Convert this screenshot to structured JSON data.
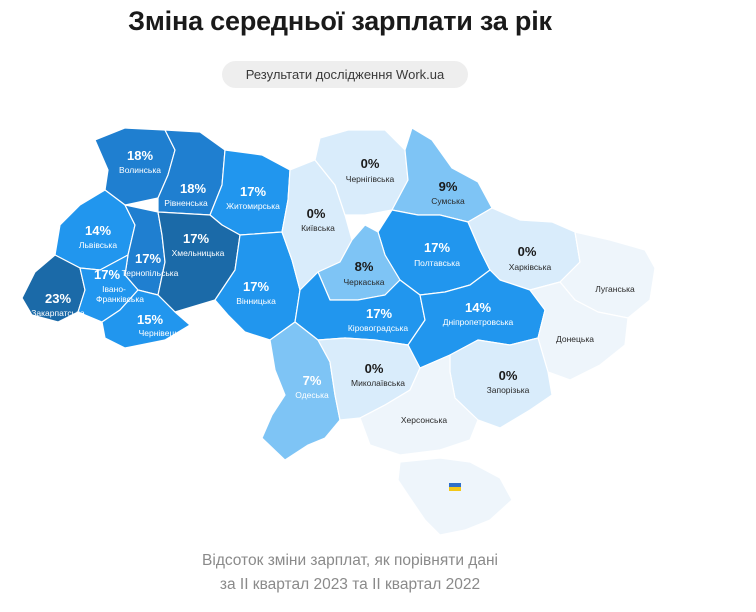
{
  "header": {
    "title": "Зміна середньої зарплати за рік",
    "source_badge": "Результати дослідження Work.ua"
  },
  "footnote": {
    "line1": "Відсоток зміни зарплат, як порівняти дані",
    "line2": "за II квартал 2023 та II квартал 2022"
  },
  "colors": {
    "darkest": "#1b6aa8",
    "dark": "#1f7fd0",
    "mid": "#2196ee",
    "light": "#7ec4f5",
    "pale": "#d9ecfb",
    "palest": "#eef5fb"
  },
  "map": {
    "regions": [
      {
        "id": "volynska",
        "name": "Волинська",
        "value": "18%"
      },
      {
        "id": "rivnenska",
        "name": "Рівненська",
        "value": "18%"
      },
      {
        "id": "zhytomyrska",
        "name": "Житомирська",
        "value": "17%"
      },
      {
        "id": "lvivska",
        "name": "Львівська",
        "value": "14%"
      },
      {
        "id": "ternopilska",
        "name": "Тернопільська",
        "value": "17%"
      },
      {
        "id": "khmelnytska",
        "name": "Хмельницька",
        "value": "17%"
      },
      {
        "id": "vinnytska",
        "name": "Вінницька",
        "value": "17%"
      },
      {
        "id": "zakarpatska",
        "name": "Закарпатська",
        "value": "23%"
      },
      {
        "id": "ivano_frankivska",
        "name": "Івано-Франківська",
        "value": "17%"
      },
      {
        "id": "chernivetska",
        "name": "Чернівецька",
        "value": "15%"
      },
      {
        "id": "kyivska",
        "name": "Київська",
        "value": "0%"
      },
      {
        "id": "chernihivska",
        "name": "Чернігівська",
        "value": "0%"
      },
      {
        "id": "sumska",
        "name": "Сумська",
        "value": "9%"
      },
      {
        "id": "poltavska",
        "name": "Полтавська",
        "value": "17%"
      },
      {
        "id": "kharkivska",
        "name": "Харківська",
        "value": "0%"
      },
      {
        "id": "cherkaska",
        "name": "Черкаська",
        "value": "8%"
      },
      {
        "id": "kirovohradska",
        "name": "Кіровоградська",
        "value": "17%"
      },
      {
        "id": "dnipropetrovska",
        "name": "Дніпропетровська",
        "value": "14%"
      },
      {
        "id": "luhanska",
        "name": "Луганська",
        "value": ""
      },
      {
        "id": "donetska",
        "name": "Донецька",
        "value": ""
      },
      {
        "id": "odeska",
        "name": "Одеська",
        "value": "7%"
      },
      {
        "id": "mykolaivska",
        "name": "Миколаївська",
        "value": "0%"
      },
      {
        "id": "zaporizka",
        "name": "Запорізька",
        "value": "0%"
      },
      {
        "id": "khersonska",
        "name": "Херсонська",
        "value": ""
      }
    ]
  }
}
